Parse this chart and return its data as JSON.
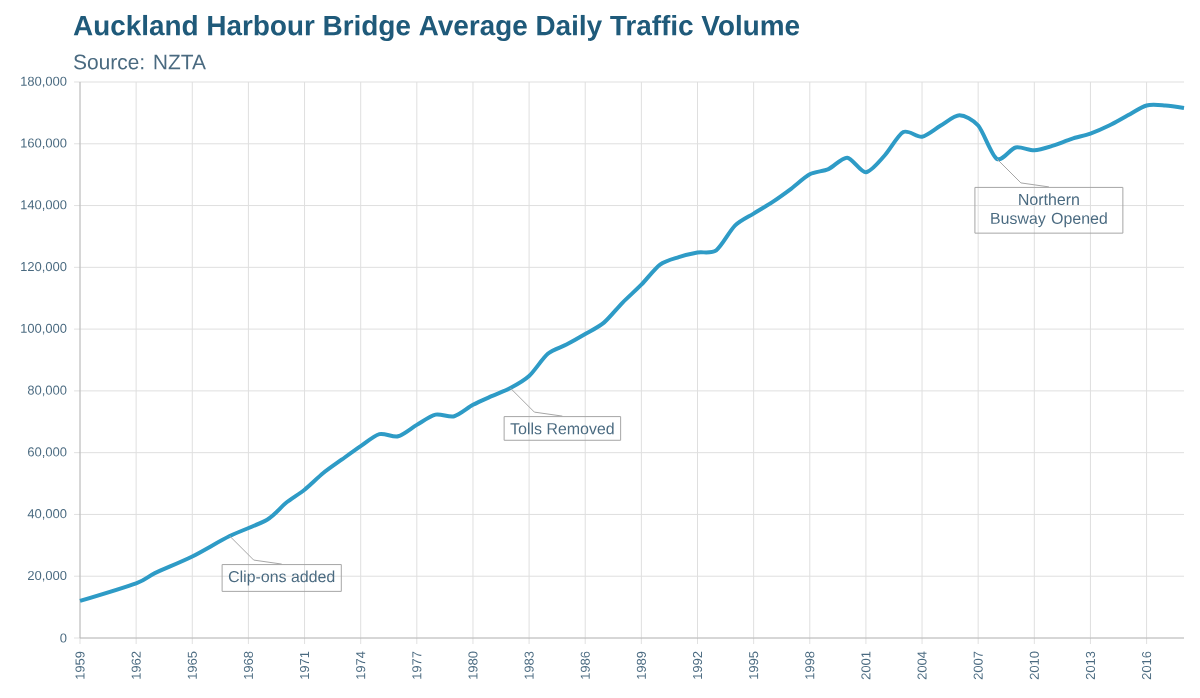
{
  "chart_data": {
    "type": "line",
    "title": "Auckland Harbour Bridge Average Daily Traffic Volume",
    "subtitle": "Source: NZTA",
    "x": [
      1959,
      1962,
      1963,
      1965,
      1967,
      1969,
      1970,
      1971,
      1972,
      1973,
      1974,
      1975,
      1976,
      1977,
      1978,
      1979,
      1980,
      1981,
      1982,
      1983,
      1984,
      1985,
      1986,
      1987,
      1988,
      1989,
      1990,
      1991,
      1992,
      1993,
      1994,
      1995,
      1996,
      1997,
      1998,
      1999,
      2000,
      2001,
      2002,
      2003,
      2004,
      2005,
      2006,
      2007,
      2008,
      2009,
      2010,
      2011,
      2012,
      2013,
      2014,
      2015,
      2016,
      2017,
      2018
    ],
    "series": [
      {
        "color": "#2e9bc6",
        "values": [
          12000,
          17700,
          21000,
          26400,
          33000,
          38300,
          43700,
          48000,
          53400,
          57800,
          62100,
          66000,
          65300,
          69000,
          72300,
          71800,
          75500,
          78300,
          80900,
          84800,
          92000,
          95000,
          98400,
          102100,
          108600,
          114400,
          120900,
          123300,
          124800,
          125500,
          133500,
          137400,
          141100,
          145400,
          150100,
          151800,
          155500,
          150800,
          156200,
          163800,
          162300,
          165900,
          169200,
          165900,
          155100,
          158800,
          157900,
          159400,
          161600,
          163300,
          165900,
          169200,
          172400,
          172400,
          171600
        ]
      }
    ],
    "xlim": [
      1959,
      2018
    ],
    "xticks": [
      1959,
      1962,
      1965,
      1968,
      1971,
      1974,
      1977,
      1980,
      1983,
      1986,
      1989,
      1992,
      1995,
      1998,
      2001,
      2004,
      2007,
      2010,
      2013,
      2016
    ],
    "ylim": [
      0,
      180000
    ],
    "yticks": [
      {
        "value": 0,
        "label": "0"
      },
      {
        "value": 20000,
        "label": "20,000"
      },
      {
        "value": 40000,
        "label": "40,000"
      },
      {
        "value": 60000,
        "label": "60,000"
      },
      {
        "value": 80000,
        "label": "80,000"
      },
      {
        "value": 100000,
        "label": "100,000"
      },
      {
        "value": 120000,
        "label": "120,000"
      },
      {
        "value": 140000,
        "label": "140,000"
      },
      {
        "value": 160000,
        "label": "160,000"
      },
      {
        "value": 180000,
        "label": "180,000"
      }
    ],
    "grid": true,
    "marker": "none",
    "line_style": "solid",
    "annotations": [
      {
        "text": "Clip-ons added",
        "x": 1967,
        "y": 33000
      },
      {
        "text": "Tolls Removed",
        "x": 1982,
        "y": 80900
      },
      {
        "text": "Northern Busway Opened",
        "x": 2008,
        "y": 155100
      }
    ]
  }
}
